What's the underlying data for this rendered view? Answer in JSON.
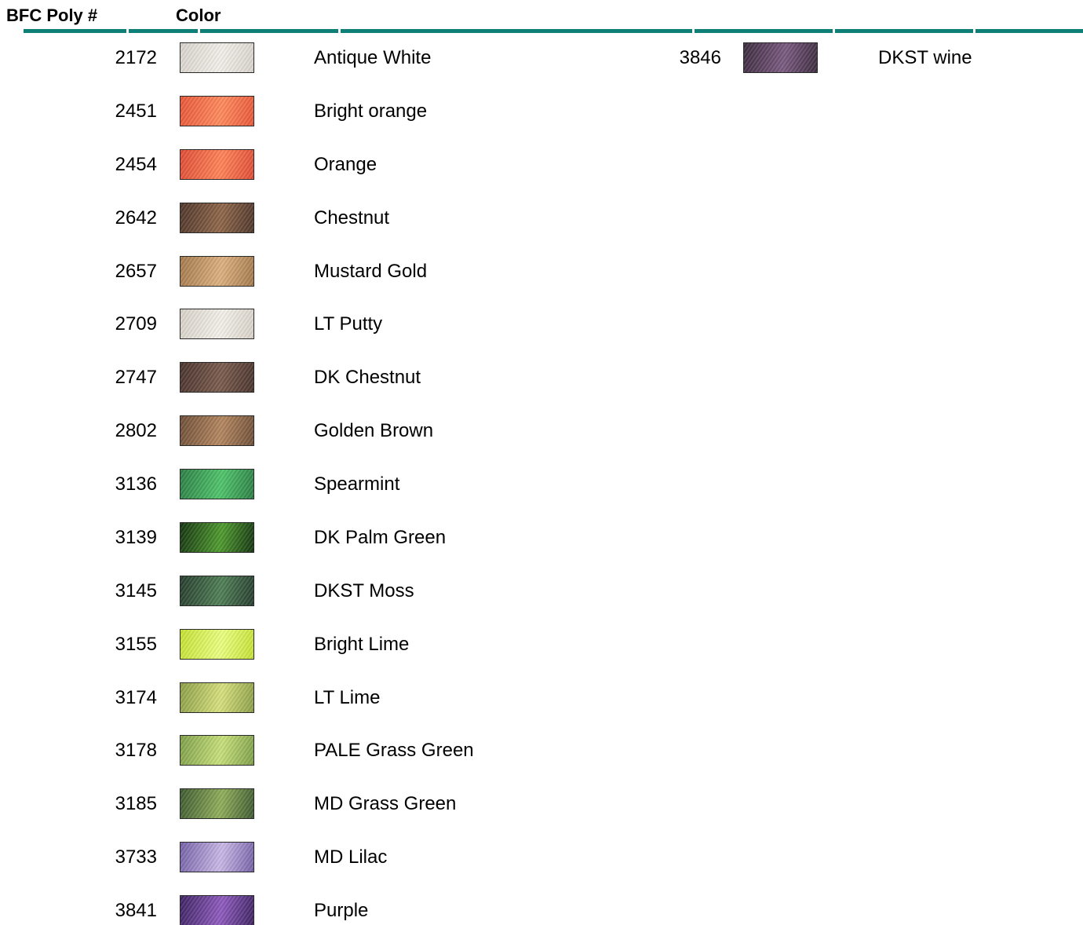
{
  "header": {
    "code_label": "BFC Poly #",
    "color_label": "Color",
    "rule_color": "#0d7f77"
  },
  "column1": [
    {
      "code": "2172",
      "name": "Antique White",
      "swatch_light": "#f2efea",
      "swatch_dark": "#d9d4cc"
    },
    {
      "code": "2451",
      "name": "Bright orange",
      "swatch_light": "#ff8a5c",
      "swatch_dark": "#e9573a"
    },
    {
      "code": "2454",
      "name": "Orange",
      "swatch_light": "#ff8358",
      "swatch_dark": "#e04d36"
    },
    {
      "code": "2642",
      "name": "Chestnut",
      "swatch_light": "#8e6649",
      "swatch_dark": "#4f362a"
    },
    {
      "code": "2657",
      "name": "Mustard Gold",
      "swatch_light": "#dcb07e",
      "swatch_dark": "#a57a4d"
    },
    {
      "code": "2709",
      "name": "LT Putty",
      "swatch_light": "#f3f0ea",
      "swatch_dark": "#d8d2c8"
    },
    {
      "code": "2747",
      "name": "DK Chestnut",
      "swatch_light": "#7a5b4d",
      "swatch_dark": "#4a342d"
    },
    {
      "code": "2802",
      "name": "Golden Brown",
      "swatch_light": "#b4865f",
      "swatch_dark": "#6f4f38"
    },
    {
      "code": "3136",
      "name": "Spearmint",
      "swatch_light": "#4fc46a",
      "swatch_dark": "#2c7f45"
    },
    {
      "code": "3139",
      "name": "DK Palm Green",
      "swatch_light": "#4e9a2e",
      "swatch_dark": "#14350f"
    },
    {
      "code": "3145",
      "name": "DKST Moss",
      "swatch_light": "#4f7e55",
      "swatch_dark": "#263d2e"
    },
    {
      "code": "3155",
      "name": "Bright Lime",
      "swatch_light": "#eaff80",
      "swatch_dark": "#c5e233"
    },
    {
      "code": "3174",
      "name": "LT Lime",
      "swatch_light": "#d7e07c",
      "swatch_dark": "#8c9f48"
    },
    {
      "code": "3178",
      "name": "PALE Grass Green",
      "swatch_light": "#c7e07a",
      "swatch_dark": "#7fa04a"
    },
    {
      "code": "3185",
      "name": "MD Grass Green",
      "swatch_light": "#8fae5a",
      "swatch_dark": "#3e5a30"
    },
    {
      "code": "3733",
      "name": "MD Lilac",
      "swatch_light": "#c8b8e6",
      "swatch_dark": "#7561a8"
    },
    {
      "code": "3841",
      "name": "Purple",
      "swatch_light": "#8f5bbf",
      "swatch_dark": "#3d2362"
    }
  ],
  "column2": [
    {
      "code": "3846",
      "name": "DKST wine",
      "swatch_light": "#7a5a80",
      "swatch_dark": "#3d2b3f"
    }
  ]
}
